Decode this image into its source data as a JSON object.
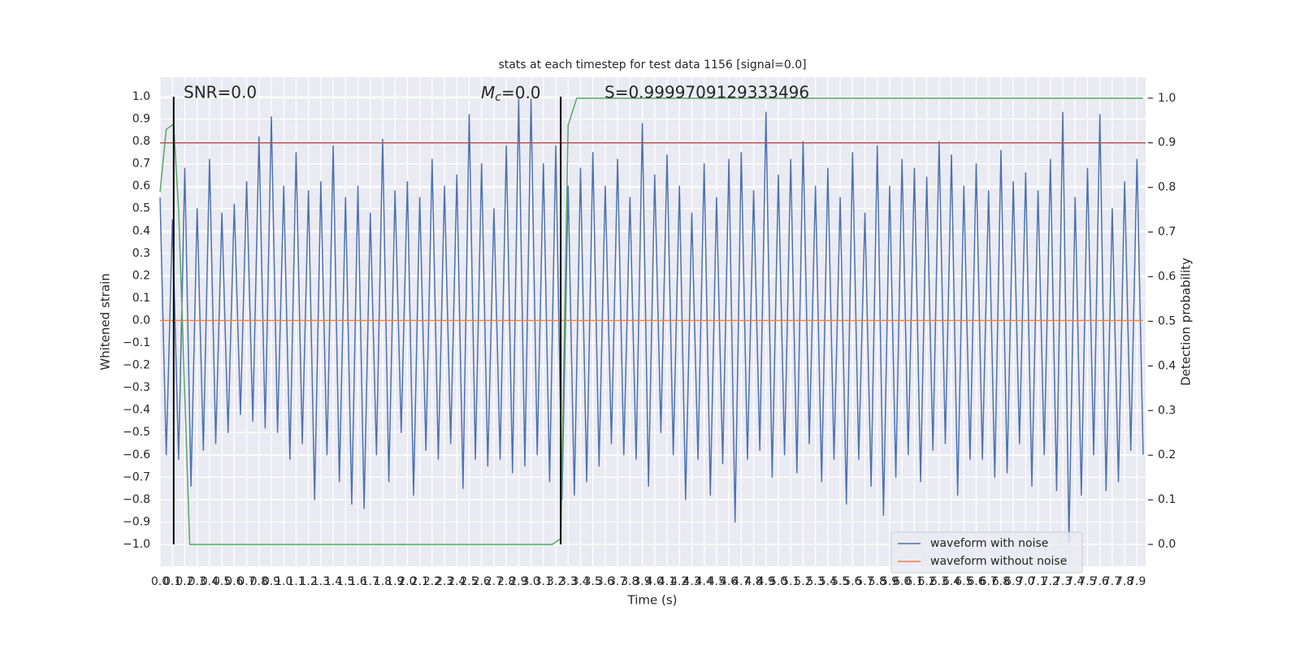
{
  "chart_data": {
    "type": "line",
    "title": "stats at each timestep for test data 1156 [signal=0.0]",
    "xlabel": "Time (s)",
    "ylabel": "Whitened strain",
    "y2label": "Detection probability",
    "xlim": [
      0,
      7.97
    ],
    "ylim": [
      -1.098,
      1.087
    ],
    "y2lim": [
      -0.049,
      1.047
    ],
    "xticks": [
      {
        "value": 0,
        "label": "0.0"
      },
      0.1,
      0.2,
      0.3,
      0.4,
      0.5,
      0.6,
      0.7,
      0.8,
      0.9,
      {
        "value": 1,
        "label": "1.0"
      },
      1.1,
      1.2,
      1.3,
      1.4,
      1.5,
      1.6,
      1.7,
      1.8,
      1.9,
      {
        "value": 2,
        "label": "2.0"
      },
      2.1,
      2.2,
      2.3,
      2.4,
      2.5,
      2.6,
      2.7,
      2.8,
      2.9,
      {
        "value": 3,
        "label": "3.0"
      },
      3.1,
      3.2,
      3.3,
      3.4,
      3.5,
      3.6,
      3.7,
      3.8,
      3.9,
      {
        "value": 4,
        "label": "4.0"
      },
      4.1,
      4.2,
      4.3,
      4.4,
      4.5,
      4.6,
      4.7,
      4.8,
      4.9,
      {
        "value": 5,
        "label": "5.0"
      },
      5.1,
      5.2,
      5.3,
      5.4,
      5.5,
      5.6,
      5.7,
      5.8,
      5.9,
      {
        "value": 6,
        "label": "6.0"
      },
      6.1,
      6.2,
      6.3,
      6.4,
      6.5,
      6.6,
      6.7,
      6.8,
      6.9,
      {
        "value": 7,
        "label": "7.0"
      },
      7.1,
      7.2,
      7.3,
      7.4,
      7.5,
      7.6,
      7.7,
      7.8,
      7.9
    ],
    "yticks": [
      {
        "value": 1,
        "label": "1.0"
      },
      0.9,
      0.8,
      0.7,
      0.6,
      0.5,
      0.4,
      0.3,
      0.2,
      0.1,
      {
        "value": 0,
        "label": "0.0"
      },
      {
        "value": -0.1,
        "label": "−0.1"
      },
      {
        "value": -0.2,
        "label": "−0.2"
      },
      {
        "value": -0.3,
        "label": "−0.3"
      },
      {
        "value": -0.4,
        "label": "−0.4"
      },
      {
        "value": -0.5,
        "label": "−0.5"
      },
      {
        "value": -0.6,
        "label": "−0.6"
      },
      {
        "value": -0.7,
        "label": "−0.7"
      },
      {
        "value": -0.8,
        "label": "−0.8"
      },
      {
        "value": -0.9,
        "label": "−0.9"
      },
      {
        "value": -1,
        "label": "−1.0"
      }
    ],
    "y2ticks": [
      {
        "value": 0,
        "label": "0.0"
      },
      0.1,
      0.2,
      0.3,
      0.4,
      0.5,
      0.6,
      0.7,
      0.8,
      0.9,
      {
        "value": 1,
        "label": "1.0"
      }
    ],
    "grid": true,
    "legend": "lower right",
    "series": [
      {
        "name": "waveform with noise",
        "color": "#4c72b0",
        "x": [
          0,
          0.05,
          0.1,
          0.15,
          0.2,
          0.25,
          0.3,
          0.35,
          0.4,
          0.45,
          0.5,
          0.55,
          0.6,
          0.65,
          0.7,
          0.75,
          0.8,
          0.85,
          0.9,
          0.95,
          1,
          1.05,
          1.1,
          1.15,
          1.2,
          1.25,
          1.3,
          1.35,
          1.4,
          1.45,
          1.5,
          1.55,
          1.6,
          1.65,
          1.7,
          1.75,
          1.8,
          1.85,
          1.9,
          1.95,
          2,
          2.05,
          2.1,
          2.15,
          2.2,
          2.25,
          2.3,
          2.35,
          2.4,
          2.45,
          2.5,
          2.55,
          2.6,
          2.65,
          2.7,
          2.75,
          2.8,
          2.85,
          2.9,
          2.95,
          3,
          3.05,
          3.1,
          3.15,
          3.2,
          3.25,
          3.3,
          3.35,
          3.4,
          3.45,
          3.5,
          3.55,
          3.6,
          3.65,
          3.7,
          3.75,
          3.8,
          3.85,
          3.9,
          3.95,
          4,
          4.05,
          4.1,
          4.15,
          4.2,
          4.25,
          4.3,
          4.35,
          4.4,
          4.45,
          4.5,
          4.55,
          4.6,
          4.65,
          4.7,
          4.75,
          4.8,
          4.85,
          4.9,
          4.95,
          5,
          5.05,
          5.1,
          5.15,
          5.2,
          5.25,
          5.3,
          5.35,
          5.4,
          5.45,
          5.5,
          5.55,
          5.6,
          5.65,
          5.7,
          5.75,
          5.8,
          5.85,
          5.9,
          5.95,
          6,
          6.05,
          6.1,
          6.15,
          6.2,
          6.25,
          6.3,
          6.35,
          6.4,
          6.45,
          6.5,
          6.55,
          6.6,
          6.65,
          6.7,
          6.75,
          6.8,
          6.85,
          6.9,
          6.95,
          7,
          7.05,
          7.1,
          7.15,
          7.2,
          7.25,
          7.3,
          7.35,
          7.4,
          7.45,
          7.5,
          7.55,
          7.6,
          7.65,
          7.7,
          7.75,
          7.8,
          7.85,
          7.9,
          7.95
        ],
        "values": [
          0.55,
          -0.6,
          0.45,
          -0.62,
          0.68,
          -0.74,
          0.5,
          -0.58,
          0.72,
          -0.55,
          0.48,
          -0.5,
          0.52,
          -0.42,
          0.62,
          -0.45,
          0.82,
          -0.48,
          0.91,
          -0.5,
          0.6,
          -0.62,
          0.75,
          -0.55,
          0.58,
          -0.8,
          0.62,
          -0.6,
          0.78,
          -0.72,
          0.55,
          -0.82,
          0.6,
          -0.84,
          0.48,
          -0.6,
          0.81,
          -0.72,
          0.58,
          -0.5,
          0.62,
          -0.78,
          0.55,
          -0.58,
          0.72,
          -0.62,
          0.6,
          -0.55,
          0.65,
          -0.75,
          0.92,
          -0.62,
          0.7,
          -0.65,
          0.5,
          -0.62,
          0.78,
          -0.68,
          0.99,
          -0.65,
          0.99,
          -0.6,
          0.7,
          -0.72,
          0.78,
          -0.8,
          0.6,
          -0.78,
          0.68,
          -0.72,
          0.75,
          -0.65,
          0.6,
          -0.55,
          0.72,
          -0.6,
          0.55,
          -0.62,
          0.88,
          -0.74,
          0.65,
          -0.5,
          0.74,
          -0.6,
          0.6,
          -0.8,
          0.48,
          -0.62,
          0.7,
          -0.78,
          0.55,
          -0.64,
          0.72,
          -0.9,
          0.75,
          -0.62,
          0.58,
          -0.58,
          0.93,
          -0.7,
          0.65,
          -0.6,
          0.72,
          -0.68,
          0.8,
          -0.55,
          0.6,
          -0.72,
          0.68,
          -0.62,
          0.55,
          -0.82,
          0.75,
          -0.62,
          0.48,
          -0.74,
          0.78,
          -0.87,
          0.6,
          -0.7,
          0.72,
          -0.6,
          0.68,
          -0.72,
          0.64,
          -0.58,
          0.8,
          -0.55,
          0.74,
          -0.78,
          0.6,
          -0.62,
          0.7,
          -0.62,
          0.58,
          -0.7,
          0.76,
          -0.68,
          0.62,
          -0.55,
          0.66,
          -0.74,
          0.58,
          -0.6,
          0.72,
          -0.76,
          0.93,
          -0.99,
          0.55,
          -0.78,
          0.68,
          -0.6,
          0.92,
          -0.76,
          0.5,
          -0.72,
          0.62,
          -0.58,
          0.72,
          -0.6
        ]
      },
      {
        "name": "waveform without noise",
        "color": "#dd8452",
        "x": [
          0,
          7.95
        ],
        "values": [
          0,
          0
        ]
      },
      {
        "color": "#55a868",
        "axis": "y2",
        "x": [
          0,
          0.05,
          0.1,
          0.11,
          0.15,
          0.24,
          0.3,
          3.17,
          3.24,
          3.3,
          3.37,
          7.95
        ],
        "values": [
          0.79,
          0.93,
          0.94,
          0.94,
          0.75,
          0,
          0,
          0,
          0.013,
          0.94,
          1,
          1
        ]
      }
    ],
    "threshold": {
      "value": 0.9,
      "axis": "y2",
      "color": "#c44e52"
    },
    "vlines": {
      "x": [
        0.11,
        3.24
      ],
      "ymin": -1,
      "ymax": 1,
      "color": "#000000"
    },
    "annotations": [
      "SNR=0.0",
      {
        "symbol": "M",
        "subscript": "c",
        "text": "=0.0"
      },
      "S=0.9999709129333496"
    ]
  }
}
